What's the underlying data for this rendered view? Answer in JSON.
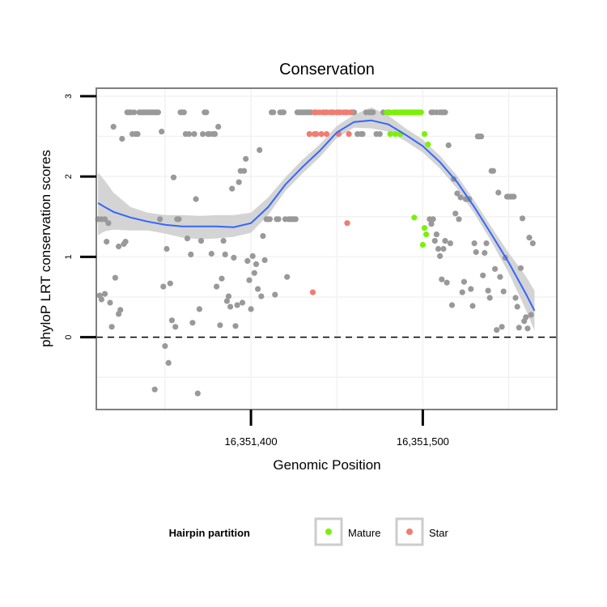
{
  "chart_data": {
    "type": "scatter",
    "title": "Conservation",
    "xlabel": "Genomic Position",
    "ylabel": "phyloP LRT conservation scores",
    "xlim": [
      16351310,
      16351578
    ],
    "ylim": [
      -0.9,
      3.1
    ],
    "x_ticks": [
      {
        "value": 16351400,
        "label": "16,351,400"
      },
      {
        "value": 16351500,
        "label": "16,351,500"
      }
    ],
    "y_ticks": [
      {
        "value": 0,
        "label": "0"
      },
      {
        "value": 1,
        "label": "1"
      },
      {
        "value": 2,
        "label": "2"
      },
      {
        "value": 3,
        "label": "3"
      }
    ],
    "y_minor_ticks": [
      -0.5,
      0.5,
      1.5,
      2.5
    ],
    "reference_line": {
      "y": 0,
      "style": "dashed"
    },
    "legend": {
      "title": "Hairpin partition",
      "position": "bottom",
      "entries": [
        {
          "label": "Mature",
          "color": "#7cf00a"
        },
        {
          "label": "Star",
          "color": "#f07c72"
        }
      ]
    },
    "colors": {
      "other": "#999999",
      "mature": "#7cf00a",
      "star": "#f07c72",
      "smooth_line": "#3366ff",
      "ribbon": "#cccccc",
      "panel_border": "#7f7f7f",
      "grid": "#f2f2f2"
    },
    "series": [
      {
        "name": "Other",
        "points": [
          [
            16351311,
            1.47
          ],
          [
            16351313,
            1.47
          ],
          [
            16351315,
            1.47
          ],
          [
            16351312,
            0.52
          ],
          [
            16351313,
            0.47
          ],
          [
            16351315,
            0.54
          ],
          [
            16351316,
            1.19
          ],
          [
            16351317,
            1.42
          ],
          [
            16351318,
            0.43
          ],
          [
            16351319,
            0.13
          ],
          [
            16351320,
            2.62
          ],
          [
            16351321,
            0.74
          ],
          [
            16351323,
            1.13
          ],
          [
            16351323,
            0.29
          ],
          [
            16351324,
            0.34
          ],
          [
            16351325,
            2.47
          ],
          [
            16351326,
            1.16
          ],
          [
            16351327,
            1.19
          ],
          [
            16351328,
            2.8
          ],
          [
            16351329,
            2.8
          ],
          [
            16351330,
            2.8
          ],
          [
            16351331,
            2.53
          ],
          [
            16351332,
            2.8
          ],
          [
            16351333,
            2.53
          ],
          [
            16351334,
            2.53
          ],
          [
            16351335,
            2.8
          ],
          [
            16351336,
            2.8
          ],
          [
            16351337,
            2.8
          ],
          [
            16351338,
            2.8
          ],
          [
            16351339,
            2.8
          ],
          [
            16351340,
            2.8
          ],
          [
            16351341,
            2.8
          ],
          [
            16351342,
            2.8
          ],
          [
            16351343,
            2.8
          ],
          [
            16351344,
            2.8
          ],
          [
            16351345,
            2.8
          ],
          [
            16351346,
            2.8
          ],
          [
            16351344,
            -0.65
          ],
          [
            16351347,
            1.47
          ],
          [
            16351348,
            2.56
          ],
          [
            16351349,
            0.63
          ],
          [
            16351350,
            -0.11
          ],
          [
            16351351,
            1.1
          ],
          [
            16351352,
            -0.32
          ],
          [
            16351353,
            0.67
          ],
          [
            16351354,
            0.21
          ],
          [
            16351355,
            1.99
          ],
          [
            16351356,
            0.13
          ],
          [
            16351357,
            1.47
          ],
          [
            16351358,
            1.47
          ],
          [
            16351359,
            2.8
          ],
          [
            16351360,
            2.8
          ],
          [
            16351361,
            2.8
          ],
          [
            16351362,
            2.53
          ],
          [
            16351363,
            1.23
          ],
          [
            16351364,
            2.53
          ],
          [
            16351365,
            1.03
          ],
          [
            16351366,
            0.18
          ],
          [
            16351367,
            2.53
          ],
          [
            16351368,
            1.72
          ],
          [
            16351369,
            -0.7
          ],
          [
            16351370,
            0.35
          ],
          [
            16351371,
            1.2
          ],
          [
            16351372,
            2.53
          ],
          [
            16351373,
            2.8
          ],
          [
            16351374,
            2.8
          ],
          [
            16351375,
            2.53
          ],
          [
            16351376,
            2.53
          ],
          [
            16351377,
            1.04
          ],
          [
            16351378,
            2.53
          ],
          [
            16351379,
            2.53
          ],
          [
            16351380,
            0.63
          ],
          [
            16351381,
            2.62
          ],
          [
            16351382,
            0.15
          ],
          [
            16351383,
            0.73
          ],
          [
            16351384,
            1.2
          ],
          [
            16351385,
            1.03
          ],
          [
            16351386,
            0.45
          ],
          [
            16351387,
            0.51
          ],
          [
            16351388,
            0.38
          ],
          [
            16351389,
            1.85
          ],
          [
            16351390,
            0.99
          ],
          [
            16351391,
            0.14
          ],
          [
            16351392,
            0.4
          ],
          [
            16351393,
            1.93
          ],
          [
            16351394,
            2.07
          ],
          [
            16351395,
            0.43
          ],
          [
            16351396,
            2.07
          ],
          [
            16351397,
            2.22
          ],
          [
            16351398,
            0.95
          ],
          [
            16351399,
            0.71
          ],
          [
            16351400,
            0.35
          ],
          [
            16351401,
            1.01
          ],
          [
            16351402,
            0.8
          ],
          [
            16351403,
            0.91
          ],
          [
            16351404,
            0.6
          ],
          [
            16351405,
            2.33
          ],
          [
            16351406,
            0.51
          ],
          [
            16351407,
            1.26
          ],
          [
            16351408,
            0.96
          ],
          [
            16351409,
            1.47
          ],
          [
            16351410,
            1.47
          ],
          [
            16351411,
            1.47
          ],
          [
            16351412,
            2.8
          ],
          [
            16351413,
            2.8
          ],
          [
            16351414,
            0.53
          ],
          [
            16351415,
            1.47
          ],
          [
            16351416,
            1.47
          ],
          [
            16351417,
            2.8
          ],
          [
            16351418,
            2.8
          ],
          [
            16351419,
            2.8
          ],
          [
            16351420,
            1.47
          ],
          [
            16351421,
            0.75
          ],
          [
            16351422,
            1.47
          ],
          [
            16351423,
            1.47
          ],
          [
            16351424,
            1.47
          ],
          [
            16351425,
            1.47
          ],
          [
            16351426,
            1.47
          ],
          [
            16351427,
            2.8
          ],
          [
            16351428,
            2.8
          ],
          [
            16351429,
            2.8
          ],
          [
            16351430,
            2.8
          ],
          [
            16351431,
            2.8
          ],
          [
            16351432,
            2.8
          ],
          [
            16351433,
            2.8
          ],
          [
            16351434,
            2.8
          ],
          [
            16351435,
            2.8
          ],
          [
            16351459,
            2.8
          ],
          [
            16351460,
            2.8
          ],
          [
            16351462,
            2.53
          ],
          [
            16351464,
            2.53
          ],
          [
            16351465,
            2.53
          ],
          [
            16351467,
            2.8
          ],
          [
            16351469,
            2.8
          ],
          [
            16351470,
            2.8
          ],
          [
            16351471,
            2.8
          ],
          [
            16351473,
            2.53
          ],
          [
            16351475,
            2.53
          ],
          [
            16351477,
            2.8
          ],
          [
            16351480,
            2.8
          ],
          [
            16351505,
            2.8
          ],
          [
            16351506,
            2.8
          ],
          [
            16351508,
            2.8
          ],
          [
            16351510,
            2.8
          ],
          [
            16351511,
            2.8
          ],
          [
            16351512,
            2.8
          ],
          [
            16351513,
            2.8
          ],
          [
            16351504,
            1.47
          ],
          [
            16351505,
            1.41
          ],
          [
            16351506,
            1.47
          ],
          [
            16351507,
            1.2
          ],
          [
            16351508,
            1.28
          ],
          [
            16351509,
            1.1
          ],
          [
            16351510,
            1.01
          ],
          [
            16351511,
            0.72
          ],
          [
            16351512,
            1.1
          ],
          [
            16351513,
            1.2
          ],
          [
            16351514,
            0.68
          ],
          [
            16351515,
            2.39
          ],
          [
            16351516,
            1.17
          ],
          [
            16351517,
            0.4
          ],
          [
            16351518,
            1.97
          ],
          [
            16351519,
            1.54
          ],
          [
            16351520,
            1.79
          ],
          [
            16351521,
            1.47
          ],
          [
            16351522,
            1.74
          ],
          [
            16351523,
            0.56
          ],
          [
            16351524,
            0.69
          ],
          [
            16351525,
            1.72
          ],
          [
            16351526,
            1.72
          ],
          [
            16351527,
            1.72
          ],
          [
            16351528,
            0.6
          ],
          [
            16351529,
            0.39
          ],
          [
            16351530,
            1.17
          ],
          [
            16351531,
            1.06
          ],
          [
            16351532,
            2.5
          ],
          [
            16351533,
            2.5
          ],
          [
            16351534,
            2.5
          ],
          [
            16351535,
            0.77
          ],
          [
            16351536,
            1.05
          ],
          [
            16351537,
            1.17
          ],
          [
            16351538,
            0.58
          ],
          [
            16351539,
            0.49
          ],
          [
            16351540,
            2.07
          ],
          [
            16351541,
            2.07
          ],
          [
            16351542,
            0.85
          ],
          [
            16351543,
            0.09
          ],
          [
            16351544,
            1.8
          ],
          [
            16351545,
            0.75
          ],
          [
            16351546,
            0.13
          ],
          [
            16351547,
            0.57
          ],
          [
            16351548,
            0.99
          ],
          [
            16351549,
            1.75
          ],
          [
            16351550,
            1.75
          ],
          [
            16351551,
            1.75
          ],
          [
            16351552,
            1.75
          ],
          [
            16351553,
            1.75
          ],
          [
            16351554,
            0.49
          ],
          [
            16351555,
            0.38
          ],
          [
            16351556,
            0.12
          ],
          [
            16351557,
            0.86
          ],
          [
            16351558,
            1.48
          ],
          [
            16351559,
            0.2
          ],
          [
            16351560,
            0.25
          ],
          [
            16351561,
            0.11
          ],
          [
            16351562,
            1.24
          ],
          [
            16351563,
            0.28
          ],
          [
            16351564,
            1.17
          ]
        ]
      },
      {
        "name": "Mature",
        "points": [
          [
            16351479,
            2.8
          ],
          [
            16351481,
            2.8
          ],
          [
            16351483,
            2.8
          ],
          [
            16351484,
            2.8
          ],
          [
            16351485,
            2.8
          ],
          [
            16351486,
            2.8
          ],
          [
            16351487,
            2.8
          ],
          [
            16351488,
            2.8
          ],
          [
            16351489,
            2.8
          ],
          [
            16351490,
            2.8
          ],
          [
            16351491,
            2.8
          ],
          [
            16351492,
            2.8
          ],
          [
            16351493,
            2.8
          ],
          [
            16351494,
            2.8
          ],
          [
            16351495,
            2.8
          ],
          [
            16351496,
            2.8
          ],
          [
            16351497,
            2.8
          ],
          [
            16351498,
            2.8
          ],
          [
            16351499,
            2.8
          ],
          [
            16351481,
            2.53
          ],
          [
            16351484,
            2.53
          ],
          [
            16351487,
            2.53
          ],
          [
            16351501,
            2.53
          ],
          [
            16351503,
            2.4
          ],
          [
            16351495,
            1.49
          ],
          [
            16351500,
            1.15
          ],
          [
            16351501,
            1.36
          ],
          [
            16351502,
            1.28
          ]
        ]
      },
      {
        "name": "Star",
        "points": [
          [
            16351437,
            2.8
          ],
          [
            16351438,
            2.8
          ],
          [
            16351440,
            2.8
          ],
          [
            16351442,
            2.8
          ],
          [
            16351443,
            2.8
          ],
          [
            16351444,
            2.8
          ],
          [
            16351446,
            2.8
          ],
          [
            16351447,
            2.8
          ],
          [
            16351448,
            2.8
          ],
          [
            16351450,
            2.8
          ],
          [
            16351451,
            2.8
          ],
          [
            16351452,
            2.8
          ],
          [
            16351454,
            2.8
          ],
          [
            16351455,
            2.8
          ],
          [
            16351456,
            2.8
          ],
          [
            16351458,
            2.8
          ],
          [
            16351434,
            2.53
          ],
          [
            16351437,
            2.53
          ],
          [
            16351438,
            2.53
          ],
          [
            16351441,
            2.53
          ],
          [
            16351444,
            2.53
          ],
          [
            16351451,
            2.53
          ],
          [
            16351457,
            2.53
          ],
          [
            16351456,
            1.42
          ],
          [
            16351436,
            0.56
          ]
        ]
      }
    ],
    "smooth": {
      "x": [
        16351311,
        16351315,
        16351320,
        16351330,
        16351340,
        16351350,
        16351360,
        16351370,
        16351380,
        16351390,
        16351400,
        16351410,
        16351420,
        16351430,
        16351440,
        16351450,
        16351460,
        16351470,
        16351480,
        16351490,
        16351500,
        16351510,
        16351520,
        16351530,
        16351540,
        16351550,
        16351560,
        16351565
      ],
      "y": [
        1.67,
        1.62,
        1.56,
        1.49,
        1.44,
        1.4,
        1.38,
        1.38,
        1.38,
        1.37,
        1.42,
        1.62,
        1.9,
        2.12,
        2.32,
        2.55,
        2.68,
        2.7,
        2.65,
        2.52,
        2.38,
        2.18,
        1.93,
        1.62,
        1.28,
        0.93,
        0.54,
        0.33
      ],
      "lower": [
        1.27,
        1.32,
        1.34,
        1.33,
        1.33,
        1.29,
        1.24,
        1.22,
        1.23,
        1.25,
        1.3,
        1.52,
        1.82,
        2.04,
        2.24,
        2.48,
        2.61,
        2.6,
        2.56,
        2.44,
        2.3,
        2.1,
        1.85,
        1.54,
        1.19,
        0.8,
        0.34,
        0.08
      ],
      "upper": [
        2.05,
        1.95,
        1.8,
        1.62,
        1.55,
        1.52,
        1.52,
        1.51,
        1.52,
        1.52,
        1.55,
        1.74,
        1.99,
        2.21,
        2.4,
        2.63,
        2.77,
        2.86,
        2.76,
        2.6,
        2.46,
        2.26,
        2.01,
        1.7,
        1.37,
        1.05,
        0.76,
        0.58
      ]
    }
  }
}
